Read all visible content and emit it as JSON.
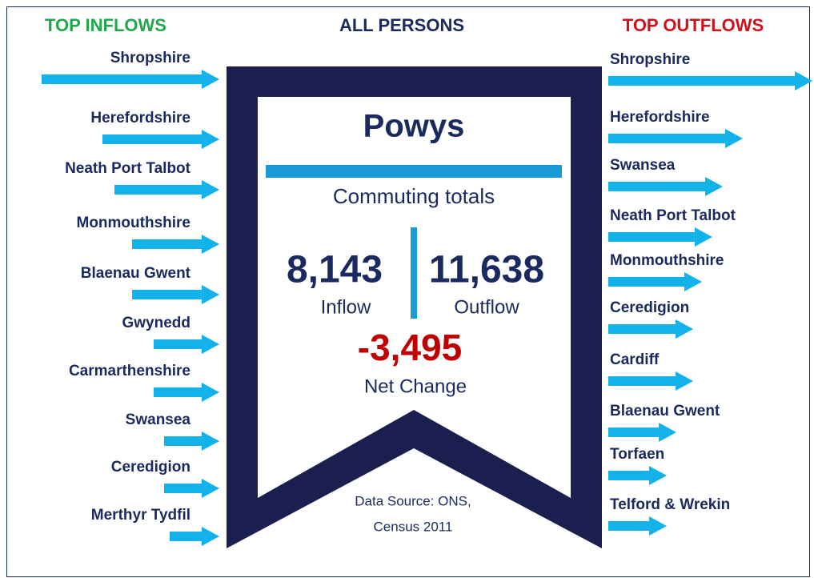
{
  "header": {
    "inflows_title": "TOP INFLOWS",
    "center_title": "ALL PERSONS",
    "outflows_title": "TOP OUTFLOWS"
  },
  "inflows": [
    "Shropshire",
    "Herefordshire",
    "Neath Port Talbot",
    "Monmouthshire",
    "Blaenau Gwent",
    "Gwynedd",
    "Carmarthenshire",
    "Swansea",
    "Ceredigion",
    "Merthyr Tydfil"
  ],
  "outflows": [
    "Shropshire",
    "Herefordshire",
    "Swansea",
    "Neath Port Talbot",
    "Monmouthshire",
    "Ceredigion",
    "Cardiff",
    "Blaenau Gwent",
    "Torfaen",
    "Telford & Wrekin"
  ],
  "center": {
    "place": "Powys",
    "subtitle": "Commuting totals",
    "inflow_value": "8,143",
    "inflow_label": "Inflow",
    "outflow_value": "11,638",
    "outflow_label": "Outflow",
    "net_value": "-3,495",
    "net_label": "Net Change",
    "source_line1": "Data Source: ONS,",
    "source_line2": "Census 2011"
  }
}
